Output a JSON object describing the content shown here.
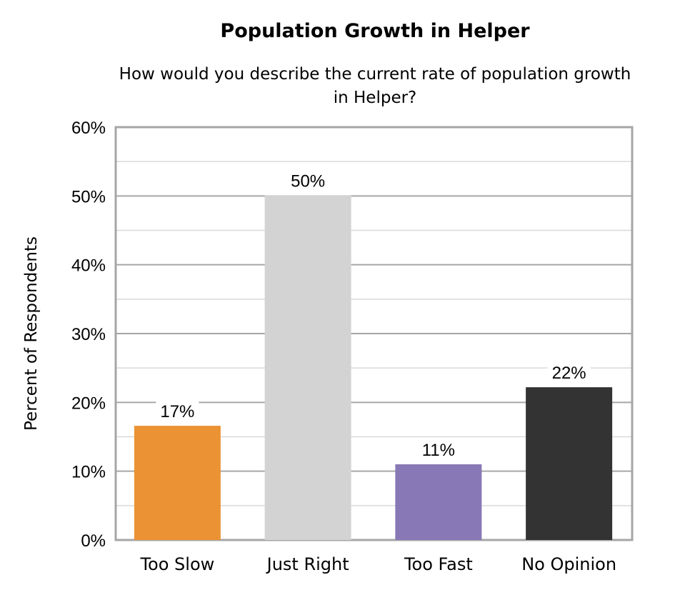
{
  "chart_data": {
    "type": "bar",
    "title": "Population Growth in Helper",
    "subtitle": "How would you describe the current rate of population growth in Helper?",
    "xlabel": "",
    "ylabel": "Percent of Respondents",
    "ylim": [
      0,
      60
    ],
    "yticks": [
      "0%",
      "10%",
      "20%",
      "30%",
      "40%",
      "50%",
      "60%"
    ],
    "grid": true,
    "categories": [
      "Too Slow",
      "Just Right",
      "Too Fast",
      "No Opinion"
    ],
    "values": [
      16.6,
      50.1,
      11.0,
      22.2
    ],
    "data_labels": [
      "17%",
      "50%",
      "11%",
      "22%"
    ],
    "colors": [
      "#EB9334",
      "#D3D3D3",
      "#8878B5",
      "#333333"
    ]
  }
}
